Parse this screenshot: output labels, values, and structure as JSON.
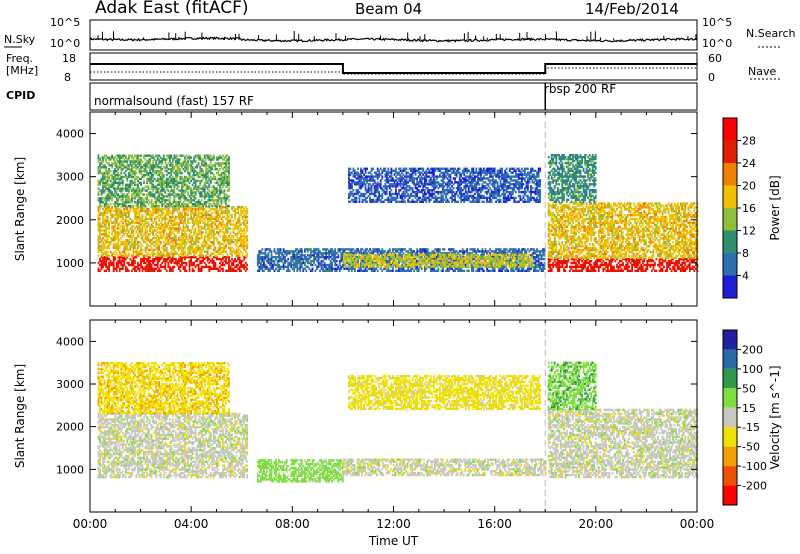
{
  "header": {
    "radar": "Adak East (fitACF)",
    "beam": "Beam 04",
    "date": "14/Feb/2014"
  },
  "noise_panel": {
    "left_label": "N.Sky",
    "right_label": "N.Search",
    "left_ticks": [
      "10^5",
      "10^0"
    ],
    "right_ticks": [
      "10^5",
      "10^0"
    ]
  },
  "freq_panel": {
    "left_label_1": "Freq.",
    "left_label_2": "[MHz]",
    "right_label": "Nave",
    "left_ticks": [
      "18",
      "8"
    ],
    "right_ticks": [
      "60",
      "0"
    ]
  },
  "cpid_panel": {
    "label": "CPID",
    "programs": [
      {
        "name": "normalsound (fast) 157 RF",
        "start_hour": 0,
        "end_hour": 18
      },
      {
        "name": "rbsp 200 RF",
        "start_hour": 18,
        "end_hour": 24
      }
    ]
  },
  "x_axis": {
    "label": "Time UT",
    "tick_labels": [
      "00:00",
      "04:00",
      "08:00",
      "12:00",
      "16:00",
      "20:00",
      "00:00"
    ]
  },
  "colors": {
    "power": [
      "#1f1fd8",
      "#2f6fb0",
      "#2f8f6e",
      "#8fbf3a",
      "#f0c000",
      "#f08000",
      "#e02000",
      "#ff0000"
    ],
    "velocity": [
      "#2020a0",
      "#2a6aa8",
      "#2e9a4a",
      "#80dd40",
      "#c8c8c0",
      "#f0e000",
      "#f0a000",
      "#f05000",
      "#ff0000"
    ]
  },
  "chart_data": [
    {
      "type": "heatmap",
      "name": "power",
      "xlabel": "Time UT",
      "ylabel": "Slant Range [km]",
      "xlim": [
        0,
        24
      ],
      "ylim": [
        0,
        4500
      ],
      "y_ticks": [
        1000,
        2000,
        3000,
        4000
      ],
      "colorbar": {
        "label": "Power [dB]",
        "ticks": [
          4,
          8,
          12,
          16,
          20,
          24,
          28
        ],
        "range": [
          0,
          32
        ]
      },
      "regions": [
        {
          "t0": 0.3,
          "t1": 6.2,
          "r0": 800,
          "r1": 1150,
          "value": 28
        },
        {
          "t0": 0.3,
          "t1": 6.2,
          "r0": 1150,
          "r1": 2300,
          "value": 18
        },
        {
          "t0": 0.3,
          "t1": 5.5,
          "r0": 2300,
          "r1": 3500,
          "value": 12
        },
        {
          "t0": 6.6,
          "t1": 18.0,
          "r0": 800,
          "r1": 1300,
          "value": 6
        },
        {
          "t0": 10.0,
          "t1": 17.5,
          "r0": 900,
          "r1": 1200,
          "value": 16
        },
        {
          "t0": 10.2,
          "t1": 17.8,
          "r0": 2400,
          "r1": 3200,
          "value": 5
        },
        {
          "t0": 18.1,
          "t1": 24.0,
          "r0": 800,
          "r1": 1100,
          "value": 28
        },
        {
          "t0": 18.1,
          "t1": 24.0,
          "r0": 1100,
          "r1": 2400,
          "value": 18
        },
        {
          "t0": 18.1,
          "t1": 20.0,
          "r0": 2400,
          "r1": 3500,
          "value": 10
        }
      ]
    },
    {
      "type": "heatmap",
      "name": "velocity",
      "xlabel": "Time UT",
      "ylabel": "Slant Range [km]",
      "xlim": [
        0,
        24
      ],
      "ylim": [
        0,
        4500
      ],
      "y_ticks": [
        1000,
        2000,
        3000,
        4000
      ],
      "colorbar": {
        "label": "Velocity [m s^-1]",
        "ticks": [
          200,
          100,
          50,
          15,
          -15,
          -50,
          -100,
          -200
        ],
        "range": [
          -250,
          250
        ]
      },
      "regions": [
        {
          "t0": 0.3,
          "t1": 6.2,
          "r0": 800,
          "r1": 2300,
          "value": 0
        },
        {
          "t0": 0.3,
          "t1": 5.5,
          "r0": 2300,
          "r1": 3500,
          "value": -40
        },
        {
          "t0": 6.6,
          "t1": 10.0,
          "r0": 700,
          "r1": 1200,
          "value": 30
        },
        {
          "t0": 10.0,
          "t1": 18.0,
          "r0": 850,
          "r1": 1250,
          "value": 0
        },
        {
          "t0": 10.2,
          "t1": 17.8,
          "r0": 2400,
          "r1": 3200,
          "value": -30
        },
        {
          "t0": 18.1,
          "t1": 24.0,
          "r0": 800,
          "r1": 2400,
          "value": 0
        },
        {
          "t0": 18.1,
          "t1": 20.0,
          "r0": 2400,
          "r1": 3500,
          "value": 40
        }
      ]
    }
  ]
}
